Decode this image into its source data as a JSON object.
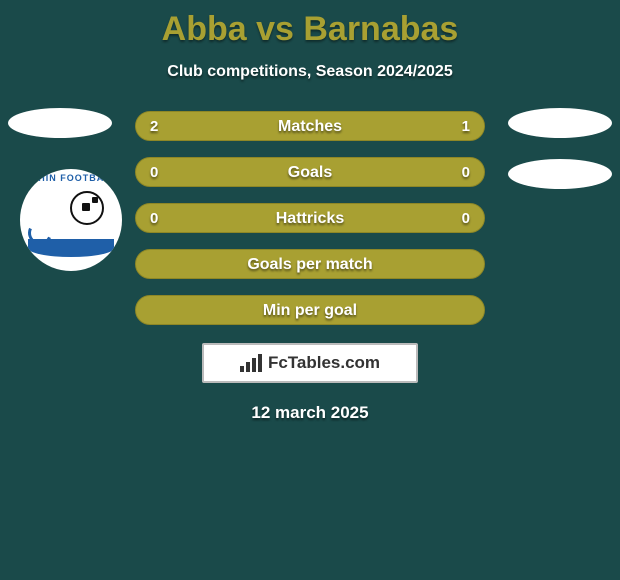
{
  "colors": {
    "background": "#1a4a4a",
    "accent": "#a8a032",
    "bar_border": "#8e8726",
    "white": "#ffffff",
    "text_shadow": "rgba(0,0,0,0.5)"
  },
  "header": {
    "title": "Abba vs Barnabas",
    "subtitle": "Club competitions, Season 2024/2025"
  },
  "left_club": {
    "name": "Dolphin Football",
    "arc_text": "PHIN FOOTBAL"
  },
  "stats": {
    "rows": [
      {
        "label": "Matches",
        "left_value": "2",
        "right_value": "1",
        "left_pct": 66.7,
        "right_pct": 33.3,
        "left_color": "#a8a032",
        "right_color": "#a8a032",
        "track_color": "#a8a032"
      },
      {
        "label": "Goals",
        "left_value": "0",
        "right_value": "0",
        "left_pct": 0,
        "right_pct": 0,
        "left_color": "#a8a032",
        "right_color": "#a8a032",
        "track_color": "#a8a032"
      },
      {
        "label": "Hattricks",
        "left_value": "0",
        "right_value": "0",
        "left_pct": 0,
        "right_pct": 0,
        "left_color": "#a8a032",
        "right_color": "#a8a032",
        "track_color": "#a8a032"
      },
      {
        "label": "Goals per match",
        "left_value": "",
        "right_value": "",
        "left_pct": 0,
        "right_pct": 0,
        "left_color": "#a8a032",
        "right_color": "#a8a032",
        "track_color": "#a8a032"
      },
      {
        "label": "Min per goal",
        "left_value": "",
        "right_value": "",
        "left_pct": 0,
        "right_pct": 0,
        "left_color": "#a8a032",
        "right_color": "#a8a032",
        "track_color": "#a8a032"
      }
    ]
  },
  "badge": {
    "text": "FcTables.com"
  },
  "footer": {
    "date": "12 march 2025"
  }
}
